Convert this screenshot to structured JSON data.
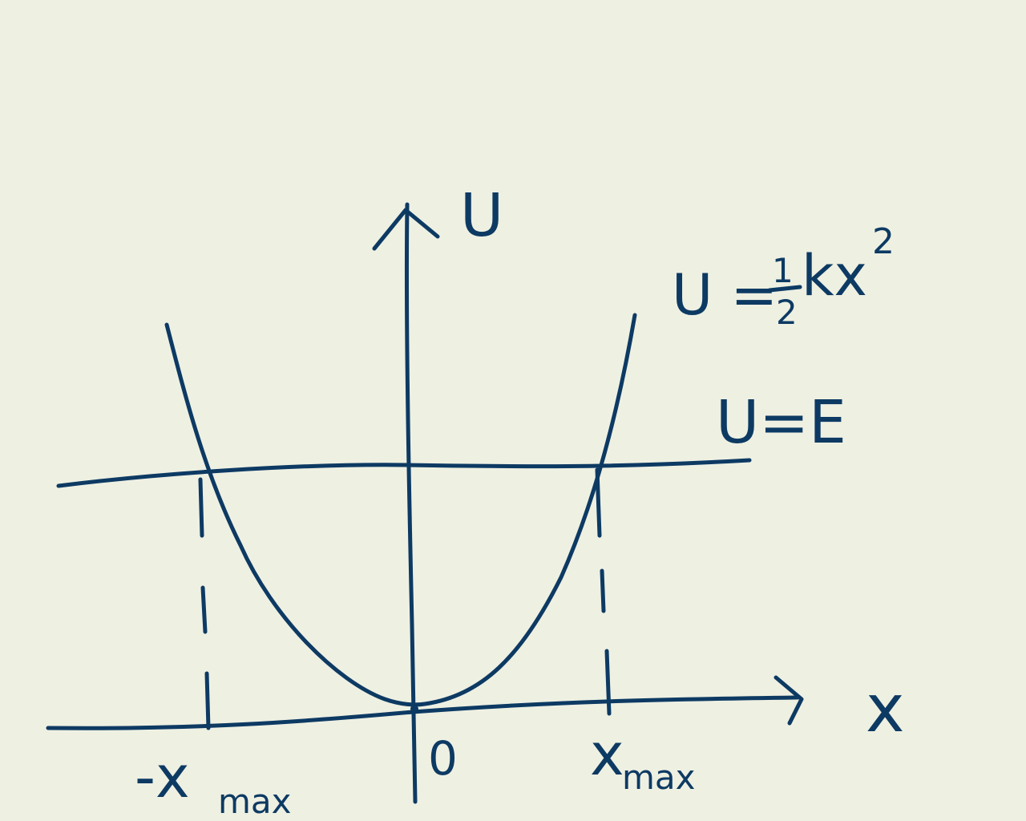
{
  "labels": {
    "y_axis": "U",
    "x_axis": "x",
    "origin": "0",
    "curve_lhs": "U =",
    "curve_frac_num": "1",
    "curve_frac_den": "2",
    "curve_rhs": "kx",
    "curve_exp": "2",
    "energy_line": "U=E",
    "neg_x": "-x",
    "pos_x": "x",
    "max_sub": "max"
  },
  "colors": {
    "background": "#eef0e2",
    "ink": "#0d3a63"
  }
}
